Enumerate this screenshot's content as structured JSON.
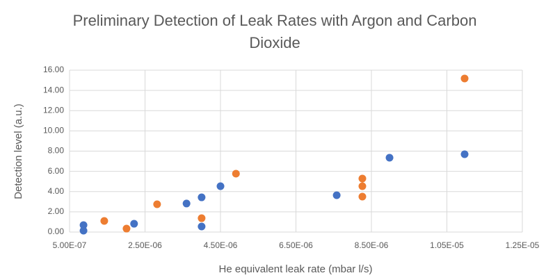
{
  "chart_data": {
    "type": "scatter",
    "title": "Preliminary Detection of Leak Rates with Argon and Carbon Dioxide",
    "xlabel": "He equivalent leak rate (mbar l/s)",
    "ylabel": "Detection level (a.u.)",
    "xlim": [
      5e-07,
      1.25e-05
    ],
    "xticks": [
      {
        "value": 5e-07,
        "label": "5.00E-07"
      },
      {
        "value": 2.5e-06,
        "label": "2.50E-06"
      },
      {
        "value": 4.5e-06,
        "label": "4.50E-06"
      },
      {
        "value": 6.5e-06,
        "label": "6.50E-06"
      },
      {
        "value": 8.5e-06,
        "label": "8.50E-06"
      },
      {
        "value": 1.05e-05,
        "label": "1.05E-05"
      },
      {
        "value": 1.25e-05,
        "label": "1.25E-05"
      }
    ],
    "ylim": [
      0,
      16
    ],
    "yticks": [
      {
        "value": 0,
        "label": "0.00"
      },
      {
        "value": 2,
        "label": "2.00"
      },
      {
        "value": 4,
        "label": "4.00"
      },
      {
        "value": 6,
        "label": "6.00"
      },
      {
        "value": 8,
        "label": "8.00"
      },
      {
        "value": 10,
        "label": "10.00"
      },
      {
        "value": 12,
        "label": "12.00"
      },
      {
        "value": 14,
        "label": "14.00"
      },
      {
        "value": 16,
        "label": "16.00"
      }
    ],
    "grid": true,
    "series": [
      {
        "color": "#4472c4",
        "x": [
          8.7e-07,
          8.7e-07,
          2.21e-06,
          3.6e-06,
          4e-06,
          4e-06,
          4.5e-06,
          7.58e-06,
          8.98e-06,
          1.097e-05
        ],
        "values": [
          0.69,
          0.14,
          0.82,
          2.82,
          3.43,
          0.55,
          4.53,
          3.64,
          7.35,
          7.69
        ]
      },
      {
        "color": "#ed7d31",
        "x": [
          1.42e-06,
          2.01e-06,
          2.82e-06,
          4e-06,
          4.91e-06,
          8.26e-06,
          8.26e-06,
          8.26e-06,
          1.097e-05
        ],
        "values": [
          1.1,
          0.34,
          2.75,
          1.37,
          5.77,
          5.29,
          4.53,
          3.5,
          15.18
        ]
      }
    ]
  }
}
